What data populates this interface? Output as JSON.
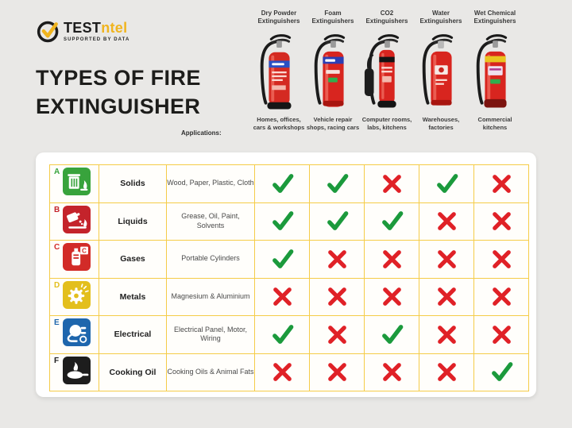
{
  "colors": {
    "background": "#e9e8e6",
    "accent_yellow": "#f0b41e",
    "table_border": "#f5cc48",
    "check_green": "#1b9a3c",
    "cross_red": "#e02127",
    "card_bg": "#ffffff",
    "title_text": "#1d1d1b"
  },
  "logo": {
    "icon": "check-circle-icon",
    "brand_black": "TEST",
    "brand_yellow": "ntel",
    "tagline": "SUPPORTED BY DATA"
  },
  "title": {
    "line1": "TYPES OF FIRE",
    "line2": "EXTINGUISHER"
  },
  "applications_label": "Applications:",
  "extinguisher_columns": [
    {
      "label": "Dry Powder Extinguishers",
      "application": "Homes, offices, cars & workshops",
      "variant": "dry-powder",
      "image": "dry-powder-extinguisher-image"
    },
    {
      "label": "Foam Extinguishers",
      "application": "Vehicle repair shops, racing cars",
      "variant": "foam",
      "image": "foam-extinguisher-image"
    },
    {
      "label": "CO2 Extinguishers",
      "application": "Computer rooms, labs, kitchens",
      "variant": "co2",
      "image": "co2-extinguisher-image"
    },
    {
      "label": "Water Extinguishers",
      "application": "Warehouses, factories",
      "variant": "water",
      "image": "water-extinguisher-image"
    },
    {
      "label": "Wet Chemical Extinguishers",
      "application": "Commercial kitchens",
      "variant": "wet-chemical",
      "image": "wet-chemical-extinguisher-image"
    }
  ],
  "fire_classes": [
    {
      "letter": "A",
      "name": "Solids",
      "materials": "Wood, Paper, Plastic, Cloth",
      "icon": "solids-fire-icon",
      "color": "#38a33c",
      "marks": [
        "check",
        "check",
        "cross",
        "check",
        "cross"
      ]
    },
    {
      "letter": "B",
      "name": "Liquids",
      "materials": "Grease, Oil, Paint, Solvents",
      "icon": "liquids-fire-icon",
      "color": "#c4232b",
      "marks": [
        "check",
        "check",
        "check",
        "cross",
        "cross"
      ]
    },
    {
      "letter": "C",
      "name": "Gases",
      "materials": "Portable Cylinders",
      "icon": "gases-fire-icon",
      "color": "#d22b28",
      "marks": [
        "check",
        "cross",
        "cross",
        "cross",
        "cross"
      ]
    },
    {
      "letter": "D",
      "name": "Metals",
      "materials": "Magnesium & Aluminium",
      "icon": "metals-fire-icon",
      "color": "#e3bf1d",
      "marks": [
        "cross",
        "cross",
        "cross",
        "cross",
        "cross"
      ]
    },
    {
      "letter": "E",
      "name": "Electrical",
      "materials": "Electrical Panel, Motor, Wiring",
      "icon": "electrical-fire-icon",
      "color": "#1e66ad",
      "marks": [
        "check",
        "cross",
        "check",
        "cross",
        "cross"
      ]
    },
    {
      "letter": "F",
      "name": "Cooking Oil",
      "materials": "Cooking Oils & Animal Fats",
      "icon": "cooking-oil-fire-icon",
      "color": "#1d1d1d",
      "marks": [
        "cross",
        "cross",
        "cross",
        "cross",
        "check"
      ]
    }
  ],
  "chart_data": {
    "type": "table",
    "title": "Types of Fire Extinguisher",
    "columns": [
      "Dry Powder Extinguishers",
      "Foam Extinguishers",
      "CO2 Extinguishers",
      "Water Extinguishers",
      "Wet Chemical Extinguishers"
    ],
    "column_applications": [
      "Homes, offices, cars & workshops",
      "Vehicle repair shops, racing cars",
      "Computer rooms, labs, kitchens",
      "Warehouses, factories",
      "Commercial kitchens"
    ],
    "rows": [
      {
        "class": "A",
        "type": "Solids",
        "examples": "Wood, Paper, Plastic, Cloth",
        "suitable": [
          true,
          true,
          false,
          true,
          false
        ]
      },
      {
        "class": "B",
        "type": "Liquids",
        "examples": "Grease, Oil, Paint, Solvents",
        "suitable": [
          true,
          true,
          true,
          false,
          false
        ]
      },
      {
        "class": "C",
        "type": "Gases",
        "examples": "Portable Cylinders",
        "suitable": [
          true,
          false,
          false,
          false,
          false
        ]
      },
      {
        "class": "D",
        "type": "Metals",
        "examples": "Magnesium & Aluminium",
        "suitable": [
          false,
          false,
          false,
          false,
          false
        ]
      },
      {
        "class": "E",
        "type": "Electrical",
        "examples": "Electrical Panel, Motor, Wiring",
        "suitable": [
          true,
          false,
          true,
          false,
          false
        ]
      },
      {
        "class": "F",
        "type": "Cooking Oil",
        "examples": "Cooking Oils & Animal Fats",
        "suitable": [
          false,
          false,
          false,
          false,
          true
        ]
      }
    ],
    "legend": {
      "check": "suitable",
      "cross": "not suitable"
    }
  }
}
